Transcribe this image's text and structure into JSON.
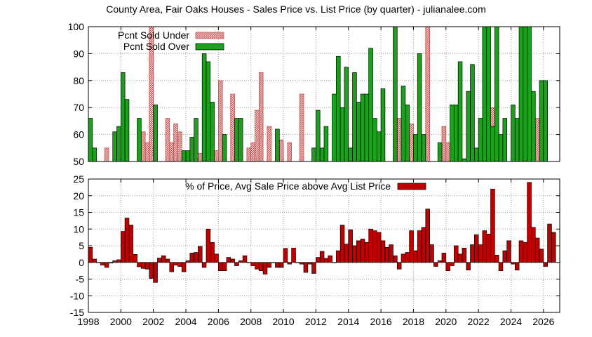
{
  "title": "County Area, Fair Oaks Houses - Sales Price vs. List Price (by quarter) - julianalee.com",
  "colors": {
    "over": "#1aa31a",
    "under_fill": "#fde0e0",
    "under_stroke": "#c04040",
    "avg": "#c00000",
    "grid": "#a0a0a0"
  },
  "chart_data": [
    {
      "type": "bar",
      "title": "",
      "xlabel": "",
      "ylabel": "",
      "xlim": [
        1998,
        2027
      ],
      "ylim": [
        50,
        100
      ],
      "yticks": [
        50,
        60,
        70,
        80,
        90,
        100
      ],
      "xticks": [
        1998,
        2000,
        2002,
        2004,
        2006,
        2008,
        2010,
        2012,
        2014,
        2016,
        2018,
        2020,
        2022,
        2024,
        2026
      ],
      "grid": true,
      "legend": "top-left",
      "series": [
        {
          "name": "Pcnt Sold Under",
          "key": "under",
          "points": [
            {
              "x": 1999.0,
              "y": 55
            },
            {
              "x": 2001.25,
              "y": 61
            },
            {
              "x": 2001.5,
              "y": 57
            },
            {
              "x": 2001.75,
              "y": 100
            },
            {
              "x": 2002.75,
              "y": 66
            },
            {
              "x": 2003.0,
              "y": 57
            },
            {
              "x": 2003.25,
              "y": 64
            },
            {
              "x": 2003.5,
              "y": 61
            },
            {
              "x": 2004.75,
              "y": 53
            },
            {
              "x": 2005.75,
              "y": 54
            },
            {
              "x": 2006.0,
              "y": 80
            },
            {
              "x": 2006.75,
              "y": 75
            },
            {
              "x": 2007.75,
              "y": 55
            },
            {
              "x": 2008.0,
              "y": 57
            },
            {
              "x": 2008.25,
              "y": 69
            },
            {
              "x": 2008.5,
              "y": 83
            },
            {
              "x": 2009.0,
              "y": 63
            },
            {
              "x": 2009.75,
              "y": 58
            },
            {
              "x": 2010.25,
              "y": 57
            },
            {
              "x": 2011.0,
              "y": 75
            },
            {
              "x": 2017.0,
              "y": 66
            },
            {
              "x": 2017.75,
              "y": 64
            },
            {
              "x": 2018.75,
              "y": 100
            },
            {
              "x": 2019.75,
              "y": 63
            },
            {
              "x": 2020.0,
              "y": 57
            },
            {
              "x": 2022.75,
              "y": 70
            },
            {
              "x": 2025.5,
              "y": 66
            }
          ]
        },
        {
          "name": "Pcnt Sold Over",
          "key": "over",
          "points": [
            {
              "x": 1998.0,
              "y": 66
            },
            {
              "x": 1998.25,
              "y": 55
            },
            {
              "x": 1999.5,
              "y": 61
            },
            {
              "x": 1999.75,
              "y": 63
            },
            {
              "x": 2000.0,
              "y": 83
            },
            {
              "x": 2000.25,
              "y": 73
            },
            {
              "x": 2001.0,
              "y": 66
            },
            {
              "x": 2002.0,
              "y": 71
            },
            {
              "x": 2003.75,
              "y": 54
            },
            {
              "x": 2004.0,
              "y": 54
            },
            {
              "x": 2004.25,
              "y": 59
            },
            {
              "x": 2004.5,
              "y": 66
            },
            {
              "x": 2005.0,
              "y": 90
            },
            {
              "x": 2005.25,
              "y": 87
            },
            {
              "x": 2005.5,
              "y": 72
            },
            {
              "x": 2006.25,
              "y": 60
            },
            {
              "x": 2007.0,
              "y": 66
            },
            {
              "x": 2007.25,
              "y": 66
            },
            {
              "x": 2009.5,
              "y": 62
            },
            {
              "x": 2011.75,
              "y": 55
            },
            {
              "x": 2012.0,
              "y": 69
            },
            {
              "x": 2012.25,
              "y": 55
            },
            {
              "x": 2012.5,
              "y": 63
            },
            {
              "x": 2013.0,
              "y": 75
            },
            {
              "x": 2013.25,
              "y": 89
            },
            {
              "x": 2013.5,
              "y": 70
            },
            {
              "x": 2013.75,
              "y": 85
            },
            {
              "x": 2014.0,
              "y": 55
            },
            {
              "x": 2014.25,
              "y": 83
            },
            {
              "x": 2014.5,
              "y": 72
            },
            {
              "x": 2014.75,
              "y": 75
            },
            {
              "x": 2015.0,
              "y": 75
            },
            {
              "x": 2015.25,
              "y": 92
            },
            {
              "x": 2015.5,
              "y": 66
            },
            {
              "x": 2015.75,
              "y": 61
            },
            {
              "x": 2016.0,
              "y": 77
            },
            {
              "x": 2016.75,
              "y": 100
            },
            {
              "x": 2017.25,
              "y": 78
            },
            {
              "x": 2017.5,
              "y": 71
            },
            {
              "x": 2018.0,
              "y": 60
            },
            {
              "x": 2018.25,
              "y": 90
            },
            {
              "x": 2018.5,
              "y": 60
            },
            {
              "x": 2019.5,
              "y": 57
            },
            {
              "x": 2020.25,
              "y": 71
            },
            {
              "x": 2020.5,
              "y": 71
            },
            {
              "x": 2020.75,
              "y": 87
            },
            {
              "x": 2021.0,
              "y": 51
            },
            {
              "x": 2021.25,
              "y": 76
            },
            {
              "x": 2021.5,
              "y": 86
            },
            {
              "x": 2021.75,
              "y": 55
            },
            {
              "x": 2022.0,
              "y": 66
            },
            {
              "x": 2022.25,
              "y": 100
            },
            {
              "x": 2022.5,
              "y": 100
            },
            {
              "x": 2022.75,
              "y": 63
            },
            {
              "x": 2023.0,
              "y": 100
            },
            {
              "x": 2023.25,
              "y": 60
            },
            {
              "x": 2023.5,
              "y": 66
            },
            {
              "x": 2024.0,
              "y": 71
            },
            {
              "x": 2024.25,
              "y": 66
            },
            {
              "x": 2024.5,
              "y": 100
            },
            {
              "x": 2024.75,
              "y": 100
            },
            {
              "x": 2025.0,
              "y": 100
            },
            {
              "x": 2025.25,
              "y": 76
            },
            {
              "x": 2025.75,
              "y": 80
            },
            {
              "x": 2026.0,
              "y": 80
            }
          ]
        }
      ]
    },
    {
      "type": "bar",
      "title": "",
      "xlabel": "",
      "ylabel": "",
      "xlim": [
        1998,
        2027
      ],
      "ylim": [
        -15,
        25
      ],
      "yticks": [
        -15,
        -10,
        -5,
        0,
        5,
        10,
        15,
        20,
        25
      ],
      "xticks": [
        1998,
        2000,
        2002,
        2004,
        2006,
        2008,
        2010,
        2012,
        2014,
        2016,
        2018,
        2020,
        2022,
        2024,
        2026
      ],
      "grid": true,
      "legend": "top-center",
      "series": [
        {
          "name": "% of Price, Avg Sale Price above Avg List Price",
          "key": "avg",
          "points": [
            {
              "x": 1998.0,
              "y": 4.5
            },
            {
              "x": 1998.25,
              "y": 1.0
            },
            {
              "x": 1998.5,
              "y": 0
            },
            {
              "x": 1998.75,
              "y": -0.8
            },
            {
              "x": 1999.0,
              "y": -1.5
            },
            {
              "x": 1999.25,
              "y": -0.2
            },
            {
              "x": 1999.5,
              "y": 0.5
            },
            {
              "x": 1999.75,
              "y": 0.8
            },
            {
              "x": 2000.0,
              "y": 9.3
            },
            {
              "x": 2000.25,
              "y": 13.3
            },
            {
              "x": 2000.5,
              "y": 11.2
            },
            {
              "x": 2000.75,
              "y": 2.4
            },
            {
              "x": 2001.0,
              "y": -1.3
            },
            {
              "x": 2001.25,
              "y": -1.8
            },
            {
              "x": 2001.5,
              "y": -2.0
            },
            {
              "x": 2001.75,
              "y": -4.8
            },
            {
              "x": 2002.0,
              "y": -6.0
            },
            {
              "x": 2002.25,
              "y": 1.3
            },
            {
              "x": 2002.5,
              "y": 2.0
            },
            {
              "x": 2002.75,
              "y": 1.0
            },
            {
              "x": 2003.0,
              "y": -2.8
            },
            {
              "x": 2003.25,
              "y": -0.8
            },
            {
              "x": 2003.5,
              "y": -1.2
            },
            {
              "x": 2003.75,
              "y": -2.8
            },
            {
              "x": 2004.0,
              "y": 0.5
            },
            {
              "x": 2004.25,
              "y": 2.8
            },
            {
              "x": 2004.5,
              "y": 3.0
            },
            {
              "x": 2004.75,
              "y": 4.8
            },
            {
              "x": 2005.0,
              "y": -1.5
            },
            {
              "x": 2005.25,
              "y": 10.0
            },
            {
              "x": 2005.5,
              "y": 6.0
            },
            {
              "x": 2005.75,
              "y": 2.5
            },
            {
              "x": 2006.0,
              "y": -2.5
            },
            {
              "x": 2006.25,
              "y": -2.5
            },
            {
              "x": 2006.5,
              "y": 1.5
            },
            {
              "x": 2006.75,
              "y": 1.0
            },
            {
              "x": 2007.0,
              "y": -1.0
            },
            {
              "x": 2007.25,
              "y": 0.5
            },
            {
              "x": 2007.5,
              "y": 2.0
            },
            {
              "x": 2007.75,
              "y": 0
            },
            {
              "x": 2008.0,
              "y": -1.0
            },
            {
              "x": 2008.25,
              "y": -2.0
            },
            {
              "x": 2008.5,
              "y": -2.5
            },
            {
              "x": 2008.75,
              "y": -3.5
            },
            {
              "x": 2009.0,
              "y": -1.5
            },
            {
              "x": 2009.25,
              "y": 0
            },
            {
              "x": 2009.5,
              "y": -1.5
            },
            {
              "x": 2009.75,
              "y": -1.5
            },
            {
              "x": 2010.0,
              "y": 4.2
            },
            {
              "x": 2010.25,
              "y": -0.5
            },
            {
              "x": 2010.5,
              "y": 4.3
            },
            {
              "x": 2010.75,
              "y": 0
            },
            {
              "x": 2011.0,
              "y": -0.5
            },
            {
              "x": 2011.25,
              "y": -3.0
            },
            {
              "x": 2011.5,
              "y": -0.5
            },
            {
              "x": 2011.75,
              "y": -3.3
            },
            {
              "x": 2012.0,
              "y": 1.5
            },
            {
              "x": 2012.25,
              "y": 3.3
            },
            {
              "x": 2012.5,
              "y": 1.2
            },
            {
              "x": 2012.75,
              "y": 2.0
            },
            {
              "x": 2013.0,
              "y": 0
            },
            {
              "x": 2013.25,
              "y": 3.5
            },
            {
              "x": 2013.5,
              "y": 11.2
            },
            {
              "x": 2013.75,
              "y": 5.5
            },
            {
              "x": 2014.0,
              "y": 9.8
            },
            {
              "x": 2014.25,
              "y": 5.0
            },
            {
              "x": 2014.5,
              "y": 6.5
            },
            {
              "x": 2014.75,
              "y": 7.0
            },
            {
              "x": 2015.0,
              "y": 6.0
            },
            {
              "x": 2015.25,
              "y": 10.0
            },
            {
              "x": 2015.5,
              "y": 9.5
            },
            {
              "x": 2015.75,
              "y": 9.0
            },
            {
              "x": 2016.0,
              "y": 6.5
            },
            {
              "x": 2016.25,
              "y": 4.5
            },
            {
              "x": 2016.5,
              "y": 5.3
            },
            {
              "x": 2016.75,
              "y": 2.0
            },
            {
              "x": 2017.0,
              "y": -2.0
            },
            {
              "x": 2017.25,
              "y": 2.5
            },
            {
              "x": 2017.5,
              "y": 3.0
            },
            {
              "x": 2017.75,
              "y": 9.5
            },
            {
              "x": 2018.0,
              "y": 3.5
            },
            {
              "x": 2018.25,
              "y": 9.5
            },
            {
              "x": 2018.5,
              "y": 10.5
            },
            {
              "x": 2018.75,
              "y": 16.0
            },
            {
              "x": 2019.0,
              "y": 5.3
            },
            {
              "x": 2019.25,
              "y": -1.2
            },
            {
              "x": 2019.5,
              "y": 0.5
            },
            {
              "x": 2019.75,
              "y": 2.8
            },
            {
              "x": 2020.0,
              "y": -2.5
            },
            {
              "x": 2020.25,
              "y": -1.0
            },
            {
              "x": 2020.5,
              "y": 5.0
            },
            {
              "x": 2020.75,
              "y": 2.5
            },
            {
              "x": 2021.0,
              "y": 4.3
            },
            {
              "x": 2021.25,
              "y": -2.3
            },
            {
              "x": 2021.5,
              "y": 5.3
            },
            {
              "x": 2021.75,
              "y": 8.3
            },
            {
              "x": 2022.0,
              "y": 5.3
            },
            {
              "x": 2022.25,
              "y": 9.5
            },
            {
              "x": 2022.5,
              "y": 8.5
            },
            {
              "x": 2022.75,
              "y": 22.0
            },
            {
              "x": 2023.0,
              "y": 2.2
            },
            {
              "x": 2023.25,
              "y": -2.5
            },
            {
              "x": 2023.5,
              "y": 3.5
            },
            {
              "x": 2023.75,
              "y": 6.5
            },
            {
              "x": 2024.0,
              "y": -0.5
            },
            {
              "x": 2024.25,
              "y": -2.3
            },
            {
              "x": 2024.5,
              "y": 6.5
            },
            {
              "x": 2024.75,
              "y": 6.0
            },
            {
              "x": 2025.0,
              "y": 24.0
            },
            {
              "x": 2025.25,
              "y": 10.5
            },
            {
              "x": 2025.5,
              "y": 7.3
            },
            {
              "x": 2025.75,
              "y": 4.0
            },
            {
              "x": 2026.0,
              "y": -1.2
            },
            {
              "x": 2026.25,
              "y": 11.5
            },
            {
              "x": 2026.5,
              "y": 9.0
            }
          ]
        }
      ]
    }
  ]
}
